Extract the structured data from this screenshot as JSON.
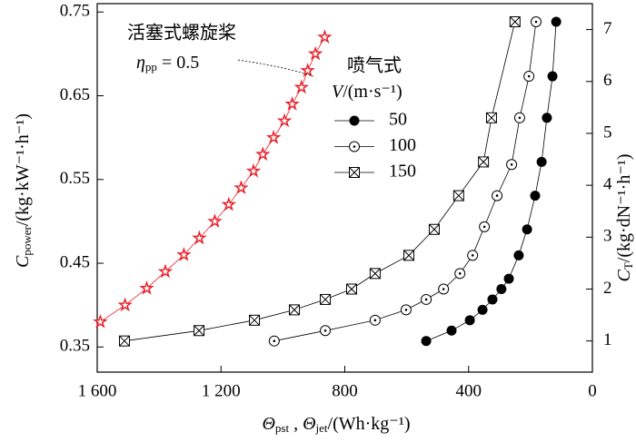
{
  "chart_data": {
    "type": "line",
    "xlabel": [
      {
        "text": "Θ",
        "style": "italic"
      },
      {
        "text": "pst",
        "style": "sub"
      },
      {
        "text": " , "
      },
      {
        "text": "Θ",
        "style": "italic"
      },
      {
        "text": "jet",
        "style": "sub"
      },
      {
        "text": "/(Wh·kg⁻¹)"
      }
    ],
    "ylabel": [
      {
        "text": "C",
        "style": "italic"
      },
      {
        "text": "power",
        "style": "sub"
      },
      {
        "text": "/(kg·kW⁻¹·h⁻¹)"
      }
    ],
    "y2label": [
      {
        "text": "C",
        "style": "italic"
      },
      {
        "text": "T",
        "style": "sub"
      },
      {
        "text": "/(kg·dN⁻¹·h⁻¹)"
      }
    ],
    "xlim": [
      1600,
      0
    ],
    "xticks": [
      {
        "value": 1600,
        "label": "1 600"
      },
      {
        "value": 1200,
        "label": "1 200"
      },
      800,
      400,
      0
    ],
    "ylim": [
      0.32,
      0.76
    ],
    "yticks": [
      0.35,
      0.45,
      0.55,
      0.65,
      0.75
    ],
    "y2lim": [
      0.4,
      7.5
    ],
    "y2ticks": [
      1,
      2,
      3,
      4,
      5,
      6,
      7
    ],
    "annotations": {
      "propeller": "活塞式螺旋桨",
      "eta": [
        {
          "text": "η",
          "style": "italic"
        },
        {
          "text": "pp",
          "style": "sub"
        },
        {
          "text": " = 0.5"
        }
      ]
    },
    "legend_title": {
      "text": "喷气式",
      "unit": [
        {
          "text": "V",
          "style": "italic"
        },
        {
          "text": "/(m·s⁻¹)"
        }
      ]
    },
    "series": [
      {
        "marker": "star",
        "color": "#e8202a",
        "axis": "y",
        "x": [
          1590,
          1510,
          1440,
          1380,
          1320,
          1270,
          1220,
          1175,
          1135,
          1095,
          1065,
          1030,
          995,
          970,
          940,
          920,
          895,
          865
        ],
        "values": [
          0.38,
          0.4,
          0.42,
          0.44,
          0.46,
          0.48,
          0.5,
          0.52,
          0.54,
          0.56,
          0.58,
          0.6,
          0.62,
          0.64,
          0.66,
          0.68,
          0.7,
          0.72
        ]
      },
      {
        "name": "50",
        "marker": "filled-circle",
        "color": "#000000",
        "axis": "y2",
        "x": [
          537,
          455,
          396,
          355,
          323,
          294,
          270,
          238,
          211,
          185,
          164,
          147,
          129,
          117
        ],
        "values": [
          1.0,
          1.2,
          1.4,
          1.6,
          1.8,
          2.0,
          2.2,
          2.65,
          3.15,
          3.8,
          4.45,
          5.3,
          6.1,
          7.15
        ]
      },
      {
        "name": "100",
        "marker": "dot-circle",
        "color": "#000000",
        "axis": "y2",
        "x": [
          1028,
          863,
          702,
          602,
          537,
          481,
          428,
          387,
          349,
          308,
          261,
          235,
          205,
          182
        ],
        "values": [
          1.0,
          1.2,
          1.4,
          1.6,
          1.8,
          2.0,
          2.3,
          2.65,
          3.2,
          3.8,
          4.4,
          5.3,
          6.1,
          7.15
        ]
      },
      {
        "name": "150",
        "marker": "crossed-square",
        "color": "#000000",
        "axis": "y2",
        "x": [
          1512,
          1271,
          1092,
          963,
          863,
          778,
          702,
          593,
          511,
          432,
          352,
          326,
          250
        ],
        "values": [
          1.0,
          1.2,
          1.4,
          1.6,
          1.8,
          2.0,
          2.3,
          2.65,
          3.15,
          3.8,
          4.45,
          5.3,
          7.15
        ]
      }
    ]
  }
}
